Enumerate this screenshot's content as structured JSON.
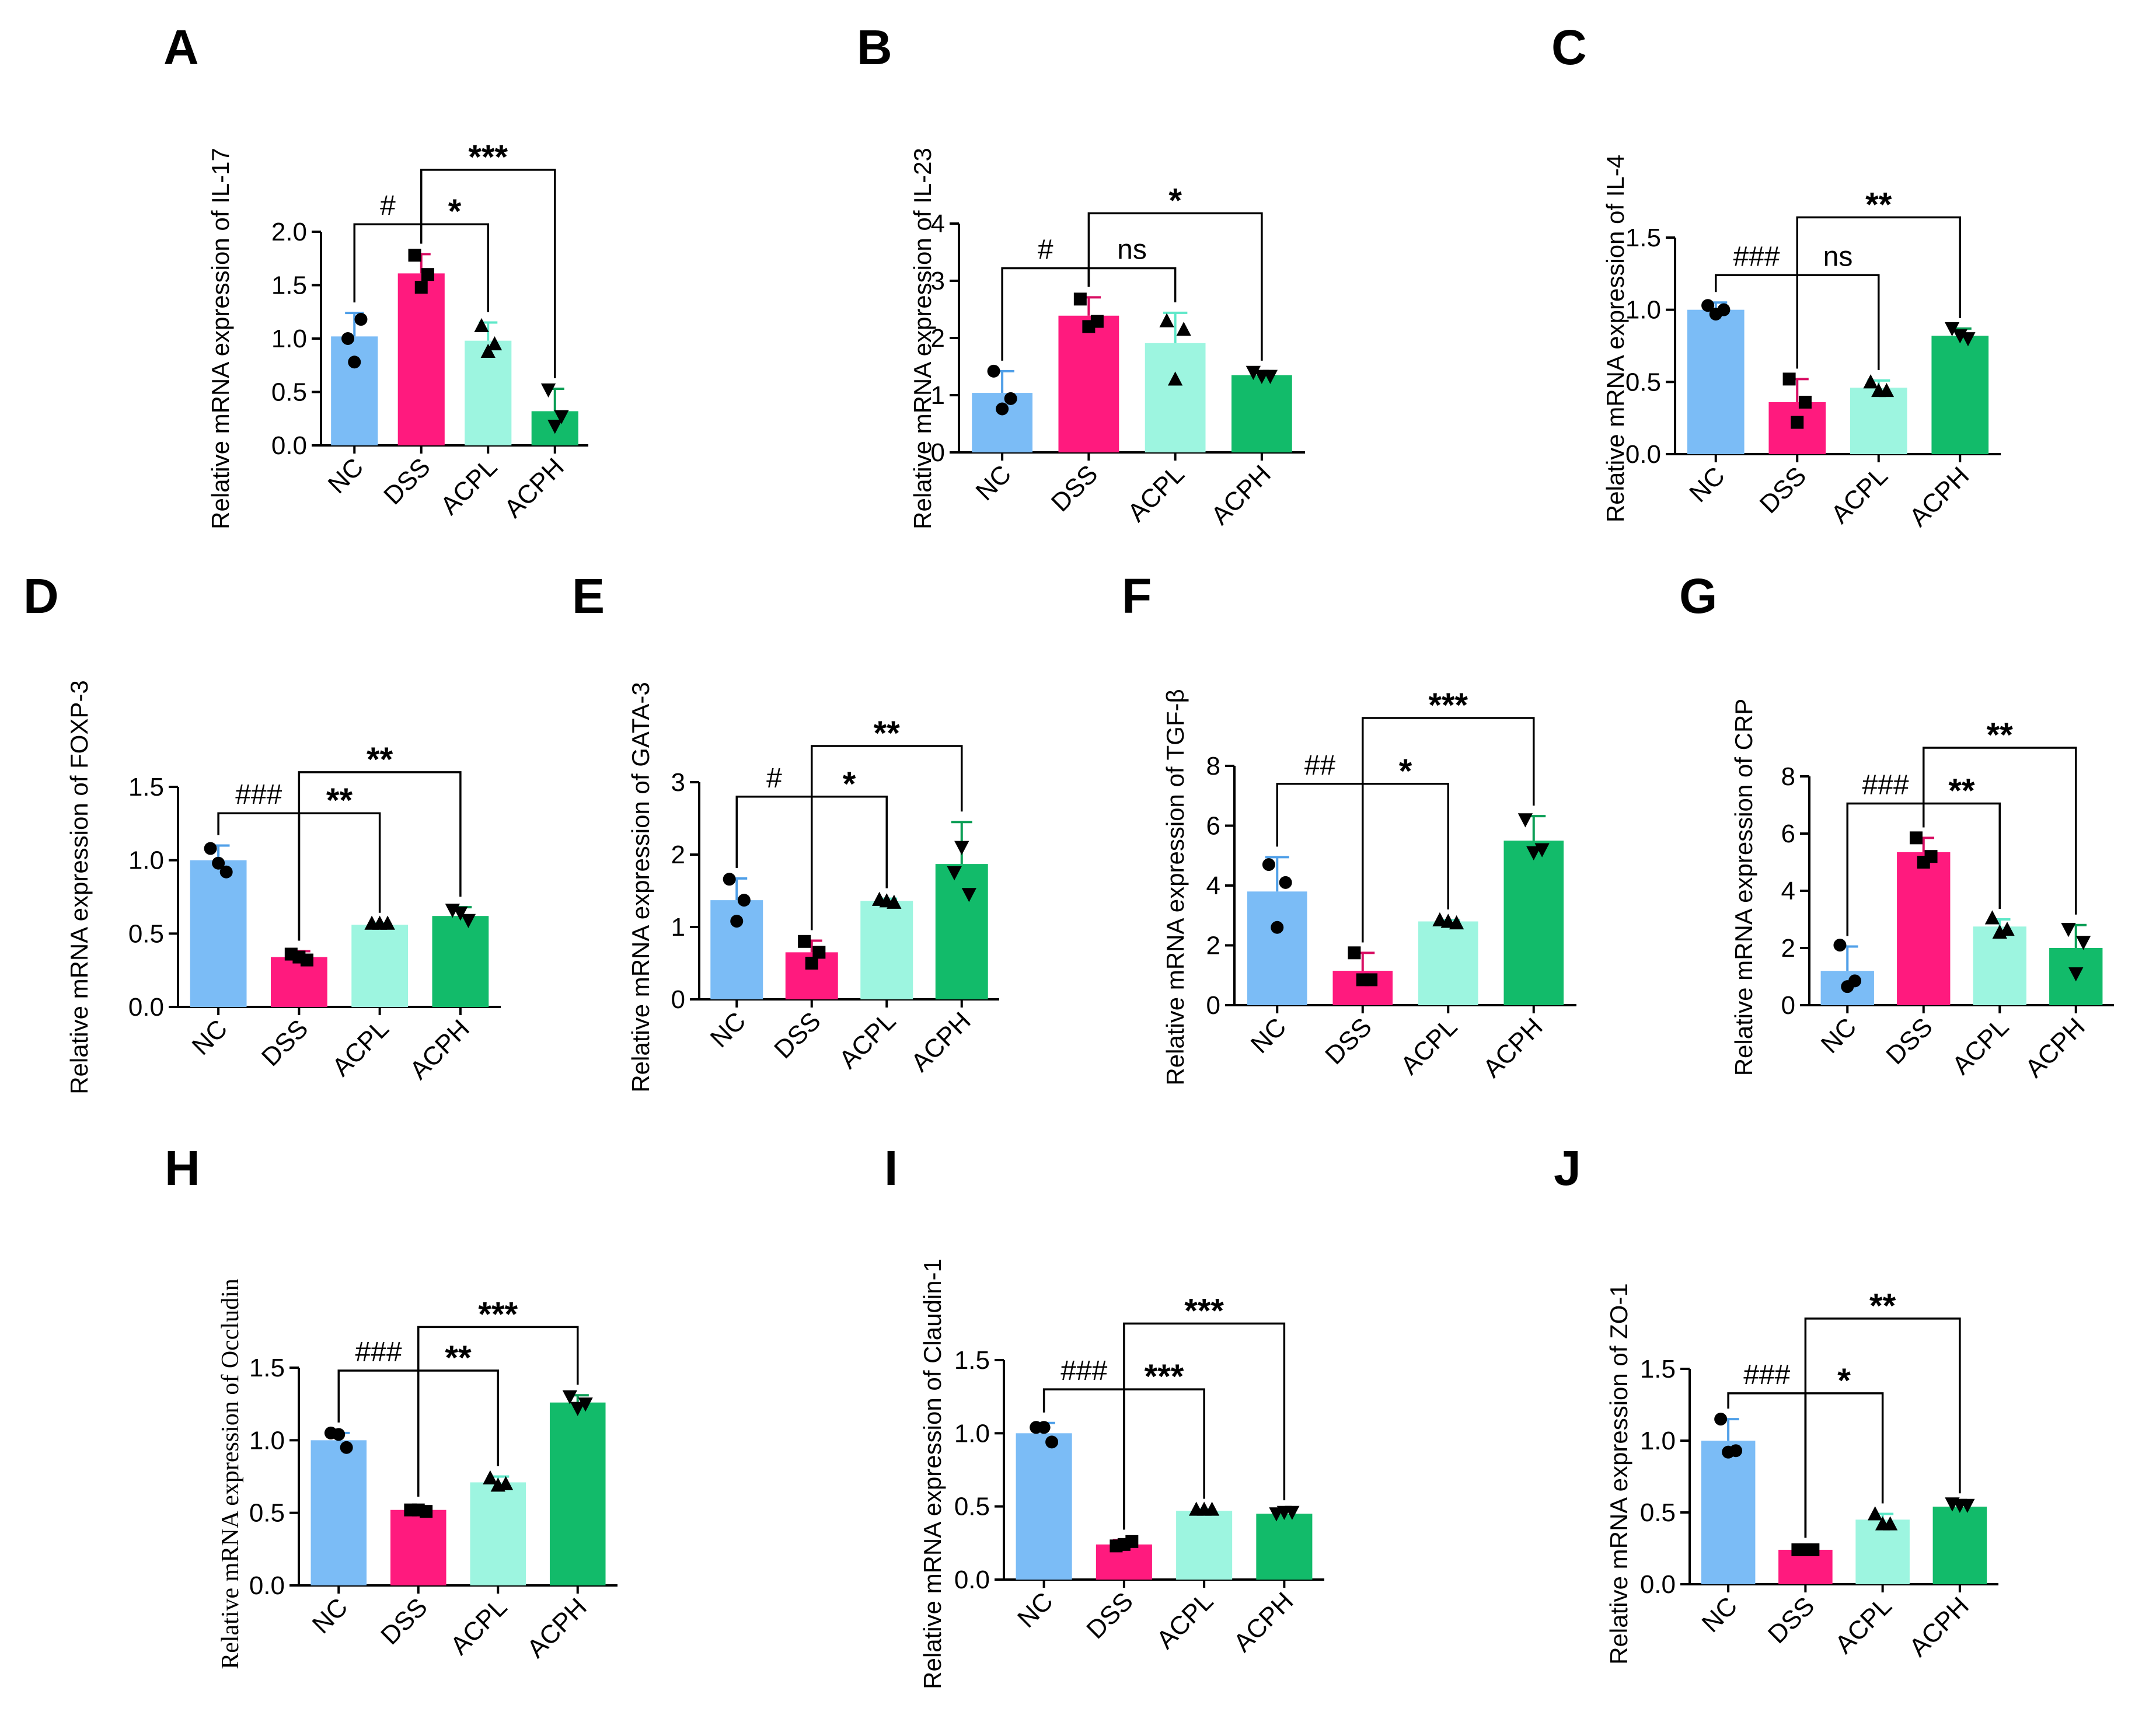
{
  "colors": {
    "NC": "#7bbcf6",
    "DSS": "#ff1a7e",
    "ACPL": "#9df5e0",
    "ACPH": "#12bb6a",
    "NC_err": "#4f9fe8",
    "DSS_err": "#d80d62",
    "ACPL_err": "#5ee8c8",
    "ACPH_err": "#0a9e55",
    "points": "#000000"
  },
  "chart_data": [
    {
      "panel": "A",
      "type": "bar",
      "ylabel": "Relative mRNA expression of IL-17",
      "categories": [
        "NC",
        "DSS",
        "ACPL",
        "ACPH"
      ],
      "values": [
        1.02,
        1.61,
        0.98,
        0.32
      ],
      "errors": [
        0.22,
        0.18,
        0.17,
        0.21
      ],
      "points": [
        [
          1.0,
          0.78,
          1.18
        ],
        [
          1.78,
          1.48,
          1.6
        ],
        [
          1.12,
          0.88,
          0.95
        ],
        [
          0.52,
          0.18,
          0.27
        ]
      ],
      "ylim": [
        0,
        2.0
      ],
      "yticks": [
        0,
        0.5,
        1.0,
        1.5,
        2.0
      ],
      "ytick_labels": [
        "0.0",
        "0.5",
        "1.0",
        "1.5",
        "2.0"
      ],
      "brackets": [
        {
          "from": 0,
          "to": 1,
          "label": "#",
          "y": 2.07
        },
        {
          "from": 1,
          "to": 2,
          "label": "*",
          "y": 2.07
        },
        {
          "from": 1,
          "to": 3,
          "label": "***",
          "y": 2.58
        }
      ]
    },
    {
      "panel": "B",
      "type": "bar",
      "ylabel": "Relative mRNA expression of IL-23",
      "categories": [
        "NC",
        "DSS",
        "ACPL",
        "ACPH"
      ],
      "values": [
        1.04,
        2.39,
        1.91,
        1.35
      ],
      "errors": [
        0.38,
        0.32,
        0.53,
        0.07
      ],
      "points": [
        [
          1.42,
          0.76,
          0.94
        ],
        [
          2.68,
          2.2,
          2.29
        ],
        [
          2.3,
          1.28,
          2.15
        ],
        [
          1.4,
          1.33,
          1.33
        ]
      ],
      "ylim": [
        0,
        4
      ],
      "yticks": [
        0,
        1,
        2,
        3,
        4
      ],
      "ytick_labels": [
        "0",
        "1",
        "2",
        "3",
        "4"
      ],
      "brackets": [
        {
          "from": 0,
          "to": 1,
          "label": "#",
          "y": 3.22
        },
        {
          "from": 1,
          "to": 2,
          "label": "ns",
          "y": 3.22
        },
        {
          "from": 1,
          "to": 3,
          "label": "*",
          "y": 4.18
        }
      ]
    },
    {
      "panel": "C",
      "type": "bar",
      "ylabel": "Relative mRNA expression of IL-4",
      "categories": [
        "NC",
        "DSS",
        "ACPL",
        "ACPH"
      ],
      "values": [
        1.0,
        0.36,
        0.46,
        0.82
      ],
      "errors": [
        0.05,
        0.16,
        0.05,
        0.05
      ],
      "points": [
        [
          1.03,
          0.97,
          1.0
        ],
        [
          0.52,
          0.22,
          0.36
        ],
        [
          0.5,
          0.44,
          0.44
        ],
        [
          0.87,
          0.82,
          0.8
        ]
      ],
      "ylim": [
        0,
        1.5
      ],
      "yticks": [
        0,
        0.5,
        1.0,
        1.5
      ],
      "ytick_labels": [
        "0.0",
        "0.5",
        "1.0",
        "1.5"
      ],
      "brackets": [
        {
          "from": 0,
          "to": 1,
          "label": "###",
          "y": 1.24
        },
        {
          "from": 1,
          "to": 2,
          "label": "ns",
          "y": 1.24
        },
        {
          "from": 1,
          "to": 3,
          "label": "**",
          "y": 1.64
        }
      ]
    },
    {
      "panel": "D",
      "type": "bar",
      "ylabel": "Relative mRNA expression of FOXP-3",
      "categories": [
        "NC",
        "DSS",
        "ACPL",
        "ACPH"
      ],
      "values": [
        1.0,
        0.34,
        0.56,
        0.62
      ],
      "errors": [
        0.1,
        0.04,
        0.01,
        0.06
      ],
      "points": [
        [
          1.08,
          0.98,
          0.92
        ],
        [
          0.36,
          0.34,
          0.32
        ],
        [
          0.57,
          0.57,
          0.57
        ],
        [
          0.66,
          0.64,
          0.59
        ]
      ],
      "ylim": [
        0,
        1.5
      ],
      "yticks": [
        0,
        0.5,
        1.0,
        1.5
      ],
      "ytick_labels": [
        "0.0",
        "0.5",
        "1.0",
        "1.5"
      ],
      "brackets": [
        {
          "from": 0,
          "to": 1,
          "label": "###",
          "y": 1.32
        },
        {
          "from": 1,
          "to": 2,
          "label": "**",
          "y": 1.32
        },
        {
          "from": 1,
          "to": 3,
          "label": "**",
          "y": 1.6
        }
      ]
    },
    {
      "panel": "E",
      "type": "bar",
      "ylabel": "Relative mRNA expression of GATA-3",
      "categories": [
        "NC",
        "DSS",
        "ACPL",
        "ACPH"
      ],
      "values": [
        1.37,
        0.65,
        1.36,
        1.87
      ],
      "errors": [
        0.3,
        0.16,
        0.03,
        0.58
      ],
      "points": [
        [
          1.66,
          1.08,
          1.37
        ],
        [
          0.8,
          0.5,
          0.65
        ],
        [
          1.38,
          1.36,
          1.34
        ],
        [
          1.75,
          2.1,
          1.45
        ]
      ],
      "ylim": [
        0,
        3
      ],
      "yticks": [
        0,
        1,
        2,
        3
      ],
      "ytick_labels": [
        "0",
        "1",
        "2",
        "3"
      ],
      "brackets": [
        {
          "from": 0,
          "to": 1,
          "label": "#",
          "y": 2.8
        },
        {
          "from": 1,
          "to": 2,
          "label": "*",
          "y": 2.8
        },
        {
          "from": 1,
          "to": 3,
          "label": "**",
          "y": 3.5
        }
      ]
    },
    {
      "panel": "F",
      "type": "bar",
      "ylabel": "Relative mRNA expression of TGF-β",
      "categories": [
        "NC",
        "DSS",
        "ACPL",
        "ACPH"
      ],
      "values": [
        3.8,
        1.15,
        2.8,
        5.5
      ],
      "errors": [
        1.15,
        0.6,
        0.05,
        0.82
      ],
      "points": [
        [
          4.7,
          2.6,
          4.1
        ],
        [
          1.75,
          0.85,
          0.85
        ],
        [
          2.85,
          2.8,
          2.75
        ],
        [
          6.2,
          5.1,
          5.2
        ]
      ],
      "ylim": [
        0,
        8
      ],
      "yticks": [
        0,
        2,
        4,
        6,
        8
      ],
      "ytick_labels": [
        "0",
        "2",
        "4",
        "6",
        "8"
      ],
      "brackets": [
        {
          "from": 0,
          "to": 1,
          "label": "##",
          "y": 7.4
        },
        {
          "from": 1,
          "to": 2,
          "label": "*",
          "y": 7.4
        },
        {
          "from": 1,
          "to": 3,
          "label": "***",
          "y": 9.6
        }
      ]
    },
    {
      "panel": "G",
      "type": "bar",
      "ylabel": "Relative mRNA expression of CRP",
      "categories": [
        "NC",
        "DSS",
        "ACPL",
        "ACPH"
      ],
      "values": [
        1.2,
        5.35,
        2.75,
        2.0
      ],
      "errors": [
        0.85,
        0.5,
        0.25,
        0.8
      ],
      "points": [
        [
          2.1,
          0.65,
          0.85
        ],
        [
          5.85,
          5.0,
          5.2
        ],
        [
          3.05,
          2.55,
          2.65
        ],
        [
          2.65,
          1.1,
          2.2
        ]
      ],
      "ylim": [
        0,
        8
      ],
      "yticks": [
        0,
        2,
        4,
        6,
        8
      ],
      "ytick_labels": [
        "0",
        "2",
        "4",
        "6",
        "8"
      ],
      "brackets": [
        {
          "from": 0,
          "to": 1,
          "label": "###",
          "y": 7.05
        },
        {
          "from": 1,
          "to": 2,
          "label": "**",
          "y": 7.05
        },
        {
          "from": 1,
          "to": 3,
          "label": "**",
          "y": 9.0
        }
      ]
    },
    {
      "panel": "H",
      "type": "bar",
      "ylabel": "Relative mRNA expression of Occludin",
      "categories": [
        "NC",
        "DSS",
        "ACPL",
        "ACPH"
      ],
      "values": [
        1.0,
        0.52,
        0.71,
        1.26
      ],
      "errors": [
        0.05,
        0.02,
        0.04,
        0.05
      ],
      "points": [
        [
          1.05,
          1.04,
          0.95
        ],
        [
          0.52,
          0.52,
          0.51
        ],
        [
          0.74,
          0.69,
          0.7
        ],
        [
          1.3,
          1.22,
          1.25
        ]
      ],
      "ylim": [
        0,
        1.5
      ],
      "yticks": [
        0,
        0.5,
        1.0,
        1.5
      ],
      "ytick_labels": [
        "0.0",
        "0.5",
        "1.0",
        "1.5"
      ],
      "brackets": [
        {
          "from": 0,
          "to": 1,
          "label": "###",
          "y": 1.48
        },
        {
          "from": 1,
          "to": 2,
          "label": "**",
          "y": 1.48
        },
        {
          "from": 1,
          "to": 3,
          "label": "***",
          "y": 1.78
        }
      ]
    },
    {
      "panel": "I",
      "type": "bar",
      "ylabel": "Relative mRNA expression of Claudin-1",
      "categories": [
        "NC",
        "DSS",
        "ACPL",
        "ACPH"
      ],
      "values": [
        1.0,
        0.24,
        0.47,
        0.45
      ],
      "errors": [
        0.07,
        0.03,
        0.01,
        0.02
      ],
      "points": [
        [
          1.04,
          1.04,
          0.94
        ],
        [
          0.23,
          0.24,
          0.26
        ],
        [
          0.48,
          0.48,
          0.48
        ],
        [
          0.45,
          0.46,
          0.46
        ]
      ],
      "ylim": [
        0,
        1.5
      ],
      "yticks": [
        0,
        0.5,
        1.0,
        1.5
      ],
      "ytick_labels": [
        "0.0",
        "0.5",
        "1.0",
        "1.5"
      ],
      "brackets": [
        {
          "from": 0,
          "to": 1,
          "label": "###",
          "y": 1.3
        },
        {
          "from": 1,
          "to": 2,
          "label": "***",
          "y": 1.3
        },
        {
          "from": 1,
          "to": 3,
          "label": "***",
          "y": 1.75
        }
      ]
    },
    {
      "panel": "J",
      "type": "bar",
      "ylabel": "Relative mRNA expression of ZO-1",
      "categories": [
        "NC",
        "DSS",
        "ACPL",
        "ACPH"
      ],
      "values": [
        1.0,
        0.24,
        0.45,
        0.54
      ],
      "errors": [
        0.15,
        0.01,
        0.04,
        0.02
      ],
      "points": [
        [
          1.15,
          0.92,
          0.93
        ],
        [
          0.24,
          0.24,
          0.24
        ],
        [
          0.49,
          0.42,
          0.42
        ],
        [
          0.56,
          0.55,
          0.55
        ]
      ],
      "ylim": [
        0,
        1.5
      ],
      "yticks": [
        0,
        0.5,
        1.0,
        1.5
      ],
      "ytick_labels": [
        "0.0",
        "0.5",
        "1.0",
        "1.5"
      ],
      "brackets": [
        {
          "from": 0,
          "to": 1,
          "label": "###",
          "y": 1.33
        },
        {
          "from": 1,
          "to": 2,
          "label": "*",
          "y": 1.33
        },
        {
          "from": 1,
          "to": 3,
          "label": "**",
          "y": 1.85
        }
      ]
    }
  ]
}
